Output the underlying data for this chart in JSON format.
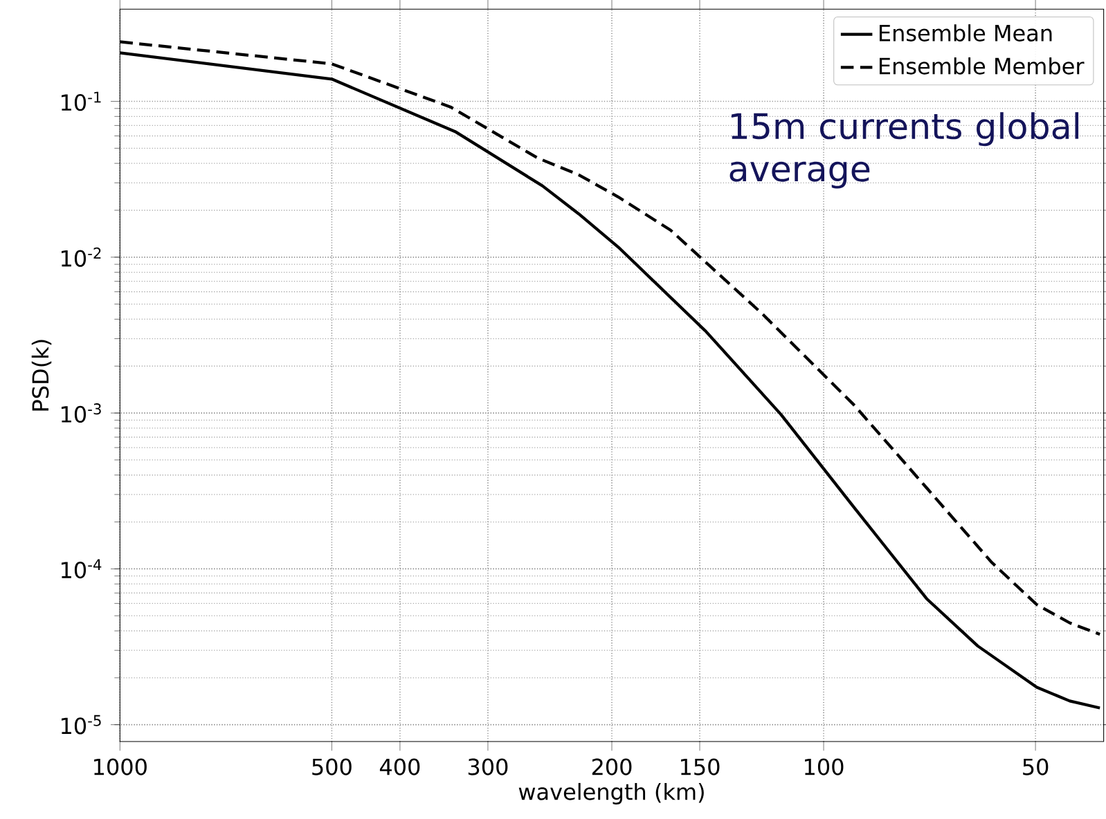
{
  "chart_data": {
    "type": "line",
    "xlabel": "wavelength (km)",
    "ylabel": "PSD(k)",
    "annotations": [
      "15m currents global average"
    ],
    "log": "xy",
    "grid": true,
    "legend": "top right",
    "xlim": [
      1000,
      40
    ],
    "ylim": [
      7.8e-06,
      0.39
    ],
    "xticks": [
      1000,
      500,
      400,
      300,
      200,
      150,
      100,
      50
    ],
    "yticks": [
      {
        "value": 1e-05,
        "label": "10$^{-5}$"
      },
      {
        "value": 0.0001,
        "label": "10$^{-4}$"
      },
      {
        "value": 0.001,
        "label": "10$^{-3}$"
      },
      {
        "value": 0.01,
        "label": "10$^{-2}$"
      },
      {
        "value": 0.1,
        "label": "10$^{-1}$"
      }
    ],
    "series": [
      {
        "name": "Ensemble Mean",
        "color": "#000000",
        "line_style": "solid",
        "x": [
          1000,
          500,
          334,
          251,
          223,
          195,
          147,
          115,
          90.6,
          71.4,
          60.4,
          49.8,
          44.7,
          40.5
        ],
        "values": [
          0.205,
          0.139,
          0.064,
          0.0287,
          0.019,
          0.0114,
          0.00334,
          0.00098,
          0.000249,
          6.44e-05,
          3.2e-05,
          1.74e-05,
          1.42e-05,
          1.28e-05
        ]
      },
      {
        "name": "Ensemble Member",
        "color": "#000000",
        "line_style": "dashed",
        "x": [
          1000,
          500,
          339,
          255,
          223,
          196,
          165,
          122.5,
          90.6,
          71.4,
          57.7,
          49.8,
          44.7,
          40.5
        ],
        "values": [
          0.241,
          0.174,
          0.092,
          0.0433,
          0.0338,
          0.0244,
          0.0149,
          0.00437,
          0.00113,
          0.000331,
          0.00011,
          5.9e-05,
          4.5e-05,
          3.8e-05
        ]
      }
    ]
  }
}
